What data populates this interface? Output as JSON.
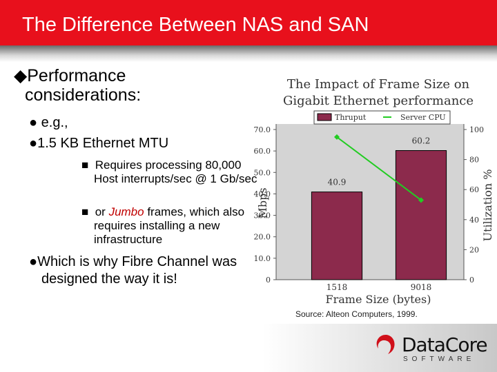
{
  "header": {
    "title": "The Difference Between NAS and SAN"
  },
  "bullets": {
    "l1": "Performance considerations:",
    "l2a": "e.g.,",
    "l2b": "1.5 KB Ethernet MTU",
    "l3a": "Requires processing 80,000 Host interrupts/sec @ 1 Gb/sec",
    "l3b": [
      "or ",
      "Jumbo",
      " frames, which also requires installing a new infrastructure"
    ],
    "l2c": "Which is why Fibre Channel was designed the way it is!"
  },
  "chart_data": {
    "type": "bar",
    "title": [
      "The Impact of Frame Size on",
      "Gigabit Ethernet performance"
    ],
    "categories": [
      "1518",
      "9018"
    ],
    "series": [
      {
        "name": "Thruput",
        "color": "#8c2a4c",
        "values": [
          40.9,
          60.2
        ]
      },
      {
        "name": "Server CPU",
        "color": "#22cc22",
        "values": [
          95,
          53
        ],
        "axis": "y2",
        "type": "line"
      }
    ],
    "ylim": [
      0,
      70
    ],
    "yticks": [
      0,
      {
        "value": 10,
        "label": "10.0"
      },
      {
        "value": 20,
        "label": "20.0"
      },
      {
        "value": 30,
        "label": "30.0"
      },
      {
        "value": 40,
        "label": "40.0"
      },
      {
        "value": 50,
        "label": "50.0"
      },
      {
        "value": 60,
        "label": "60.0"
      },
      {
        "value": 70,
        "label": "70.0"
      }
    ],
    "y2lim": [
      0,
      100
    ],
    "y2ticks": [
      0,
      20,
      40,
      60,
      80,
      100
    ],
    "xlabel": "Frame Size (bytes)",
    "ylabel": "Mbps",
    "y2label": "Utilization %",
    "legend": "top"
  },
  "source": "Source: Alteon Computers, 1999.",
  "logo": {
    "name": "DataCore",
    "tagline": "SOFTWARE"
  }
}
